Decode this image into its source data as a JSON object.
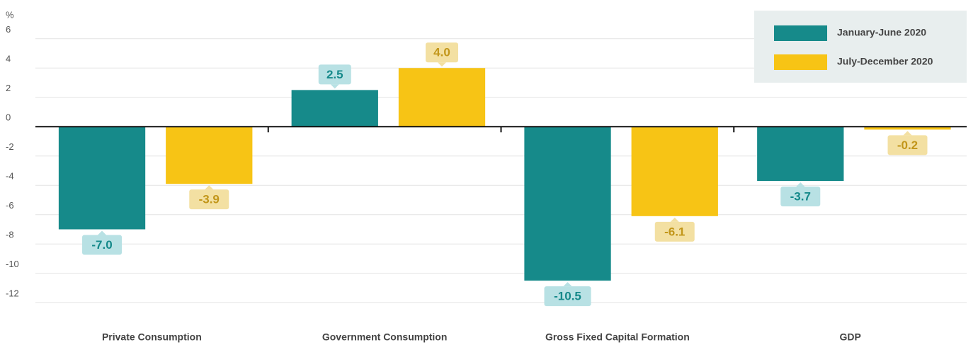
{
  "chart_data": {
    "type": "bar",
    "y_label": "%",
    "categories": [
      "Private Consumption",
      "Government Consumption",
      "Gross Fixed Capital Formation",
      "GDP"
    ],
    "series": [
      {
        "name": "January-June 2020",
        "color": "#168a8a",
        "label_bg": "#b8e1e4",
        "label_color": "#15898a",
        "values": [
          -7.0,
          2.5,
          -10.5,
          -3.7
        ],
        "value_labels": [
          "-7.0",
          "2.5",
          "-10.5",
          "-3.7"
        ]
      },
      {
        "name": "July-December 2020",
        "color": "#f7c415",
        "label_bg": "#f3e0a2",
        "label_color": "#c2961a",
        "values": [
          -3.9,
          4.0,
          -6.1,
          -0.2
        ],
        "value_labels": [
          "-3.9",
          "4.0",
          "-6.1",
          "-0.2"
        ]
      }
    ],
    "ylim": [
      -13,
      7
    ],
    "yticks": [
      6,
      4,
      2,
      0,
      -2,
      -4,
      -6,
      -8,
      -10,
      -12
    ],
    "grid": true,
    "legend": "top-right"
  }
}
